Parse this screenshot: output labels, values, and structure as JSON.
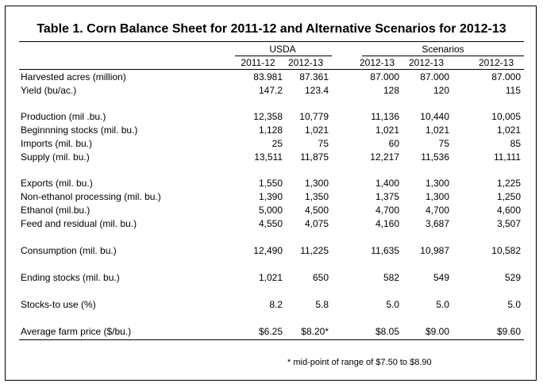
{
  "title": "Table 1. Corn Balance Sheet for 2011-12 and Alternative Scenarios for 2012-13",
  "groups": {
    "usda": "USDA",
    "scenarios": "Scenarios"
  },
  "columns": [
    "2011-12",
    "2012-13",
    "2012-13",
    "2012-13",
    "2012-13"
  ],
  "rows": [
    {
      "label": "Harvested acres (million)",
      "values": [
        "83.981",
        "87.361",
        "87.000",
        "87.000",
        "87.000"
      ]
    },
    {
      "label": "Yield (bu/ac.)",
      "values": [
        "147.2",
        "123.4",
        "128",
        "120",
        "115"
      ]
    },
    {
      "label": "Production (mil .bu.)",
      "values": [
        "12,358",
        "10,779",
        "11,136",
        "10,440",
        "10,005"
      ]
    },
    {
      "label": "Beginnning stocks (mil. bu.)",
      "values": [
        "1,128",
        "1,021",
        "1,021",
        "1,021",
        "1,021"
      ]
    },
    {
      "label": "Imports (mil. bu.)",
      "values": [
        "25",
        "75",
        "60",
        "75",
        "85"
      ]
    },
    {
      "label": "Supply (mil. bu.)",
      "values": [
        "13,511",
        "11,875",
        "12,217",
        "11,536",
        "11,111"
      ]
    },
    {
      "label": "Exports (mil. bu.)",
      "values": [
        "1,550",
        "1,300",
        "1,400",
        "1,300",
        "1,225"
      ]
    },
    {
      "label": "Non-ethanol processing (mil. bu.)",
      "values": [
        "1,390",
        "1,350",
        "1,375",
        "1,300",
        "1,250"
      ]
    },
    {
      "label": "Ethanol (mil.bu.)",
      "values": [
        "5,000",
        "4,500",
        "4,700",
        "4,700",
        "4,600"
      ]
    },
    {
      "label": "Feed and residual (mil. bu.)",
      "values": [
        "4,550",
        "4,075",
        "4,160",
        "3,687",
        "3,507"
      ]
    },
    {
      "label": "Consumption (mil. bu.)",
      "values": [
        "12,490",
        "11,225",
        "11,635",
        "10,987",
        "10,582"
      ]
    },
    {
      "label": "Ending stocks (mil. bu.)",
      "values": [
        "1,021",
        "650",
        "582",
        "549",
        "529"
      ]
    },
    {
      "label": "Stocks-to use (%)",
      "values": [
        "8.2",
        "5.8",
        "5.0",
        "5.0",
        "5.0"
      ]
    },
    {
      "label": "Average farm price ($/bu.)",
      "values": [
        "$6.25",
        "$8.20*",
        "$8.05",
        "$9.00",
        "$9.60"
      ]
    }
  ],
  "footnote": "* mid-point of range of $7.50 to $8.90"
}
